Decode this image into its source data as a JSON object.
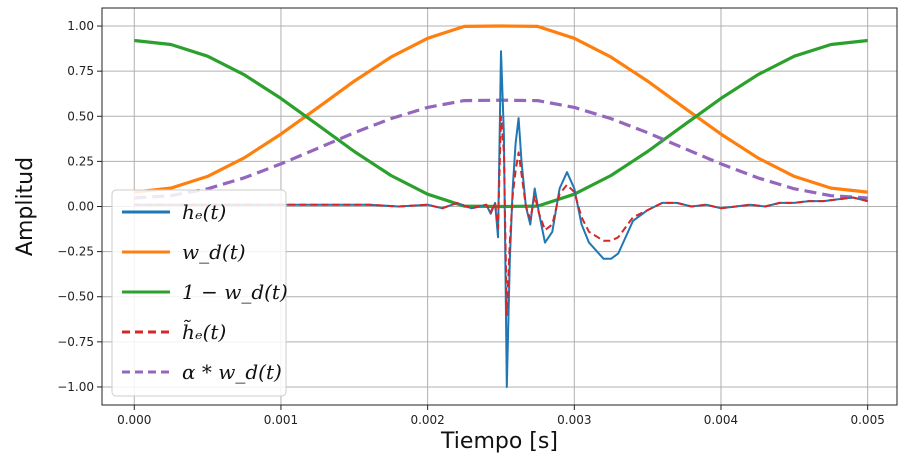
{
  "chart_data": {
    "type": "line",
    "title": "",
    "xlabel": "Tiempo [s]",
    "ylabel": "Amplitud",
    "xlim": [
      -0.00022,
      0.0052
    ],
    "ylim": [
      -1.1,
      1.1
    ],
    "x_ticks": [
      "0.000",
      "0.001",
      "0.002",
      "0.003",
      "0.004",
      "0.005"
    ],
    "x_tick_values": [
      0,
      0.001,
      0.002,
      0.003,
      0.004,
      0.005
    ],
    "y_ticks": [
      "1.00",
      "0.75",
      "0.50",
      "0.25",
      "0.00",
      "−0.25",
      "−0.50",
      "−0.75",
      "−1.00"
    ],
    "y_tick_values": [
      1.0,
      0.75,
      0.5,
      0.25,
      0.0,
      -0.25,
      -0.5,
      -0.75,
      -1.0
    ],
    "grid": true,
    "legend_position": "lower-left",
    "series": [
      {
        "name": "h_e(t)",
        "legend_label": "hₑ(t)",
        "color": "#1f77b4",
        "dash": "solid",
        "x": [
          0.0,
          0.0016,
          0.0018,
          0.002,
          0.0021,
          0.0022,
          0.0023,
          0.0024,
          0.00243,
          0.00246,
          0.00248,
          0.0025,
          0.00252,
          0.00254,
          0.00256,
          0.00258,
          0.0026,
          0.00262,
          0.00264,
          0.00267,
          0.0027,
          0.00273,
          0.00276,
          0.0028,
          0.00285,
          0.0029,
          0.00295,
          0.003,
          0.00305,
          0.0031,
          0.0032,
          0.00325,
          0.0033,
          0.0034,
          0.0035,
          0.0036,
          0.0037,
          0.0038,
          0.0039,
          0.004,
          0.0041,
          0.0042,
          0.0043,
          0.0044,
          0.0045,
          0.0046,
          0.0047,
          0.0048,
          0.0049,
          0.005
        ],
        "y": [
          0.01,
          0.01,
          0.0,
          0.01,
          -0.01,
          0.02,
          -0.01,
          0.01,
          -0.04,
          0.02,
          -0.17,
          0.86,
          0.4,
          -1.0,
          -0.3,
          0.1,
          0.35,
          0.49,
          0.25,
          0.0,
          -0.1,
          0.1,
          -0.04,
          -0.2,
          -0.14,
          0.1,
          0.19,
          0.1,
          -0.1,
          -0.2,
          -0.29,
          -0.29,
          -0.26,
          -0.08,
          -0.02,
          0.02,
          0.02,
          0.0,
          0.01,
          -0.01,
          0.0,
          0.01,
          0.0,
          0.02,
          0.02,
          0.03,
          0.03,
          0.04,
          0.05,
          0.03
        ]
      },
      {
        "name": "w_d(t)",
        "legend_label": "w_d(t)",
        "color": "#ff7f0e",
        "dash": "solid",
        "x": [
          0.0,
          0.00025,
          0.0005,
          0.00075,
          0.001,
          0.00125,
          0.0015,
          0.00175,
          0.002,
          0.00225,
          0.0025,
          0.00275,
          0.003,
          0.00325,
          0.0035,
          0.00375,
          0.004,
          0.00425,
          0.0045,
          0.00475,
          0.005
        ],
        "y": [
          0.08,
          0.102,
          0.167,
          0.27,
          0.401,
          0.547,
          0.695,
          0.828,
          0.932,
          0.998,
          1.0,
          0.998,
          0.932,
          0.828,
          0.695,
          0.547,
          0.401,
          0.27,
          0.167,
          0.102,
          0.08
        ]
      },
      {
        "name": "1 - w_d(t)",
        "legend_label": "1 − w_d(t)",
        "color": "#2ca02c",
        "dash": "solid",
        "x": [
          0.0,
          0.00025,
          0.0005,
          0.00075,
          0.001,
          0.00125,
          0.0015,
          0.00175,
          0.002,
          0.00225,
          0.0025,
          0.00275,
          0.003,
          0.00325,
          0.0035,
          0.00375,
          0.004,
          0.00425,
          0.0045,
          0.00475,
          0.005
        ],
        "y": [
          0.92,
          0.898,
          0.833,
          0.73,
          0.599,
          0.453,
          0.305,
          0.172,
          0.068,
          0.002,
          0.0,
          0.002,
          0.068,
          0.172,
          0.305,
          0.453,
          0.599,
          0.73,
          0.833,
          0.898,
          0.92
        ]
      },
      {
        "name": "h~_e(t)",
        "legend_label": "h̃ₑ(t)",
        "color": "#d62728",
        "dash": "dashed",
        "x": [
          0.0,
          0.0016,
          0.0018,
          0.002,
          0.0021,
          0.0022,
          0.0023,
          0.0024,
          0.00243,
          0.00246,
          0.00248,
          0.0025,
          0.00252,
          0.00254,
          0.00256,
          0.00258,
          0.0026,
          0.00262,
          0.00264,
          0.00267,
          0.0027,
          0.00273,
          0.00276,
          0.0028,
          0.00285,
          0.0029,
          0.00295,
          0.003,
          0.00305,
          0.0031,
          0.0032,
          0.00325,
          0.0033,
          0.0034,
          0.0035,
          0.0036,
          0.0037,
          0.0038,
          0.0039,
          0.004,
          0.0041,
          0.0042,
          0.0043,
          0.0044,
          0.0045,
          0.0046,
          0.0047,
          0.0048,
          0.0049,
          0.005
        ],
        "y": [
          0.01,
          0.01,
          0.0,
          0.01,
          -0.01,
          0.02,
          -0.01,
          0.01,
          -0.03,
          0.02,
          -0.12,
          0.5,
          0.3,
          -0.6,
          -0.2,
          0.06,
          0.2,
          0.3,
          0.18,
          0.0,
          -0.07,
          0.06,
          -0.04,
          -0.13,
          -0.1,
          0.07,
          0.12,
          0.08,
          -0.06,
          -0.14,
          -0.19,
          -0.19,
          -0.17,
          -0.06,
          -0.02,
          0.02,
          0.02,
          0.0,
          0.01,
          -0.01,
          0.0,
          0.01,
          0.0,
          0.02,
          0.02,
          0.03,
          0.03,
          0.04,
          0.05,
          0.03
        ]
      },
      {
        "name": "alpha * w_d(t)",
        "legend_label": "α * w_d(t)",
        "color": "#9467bd",
        "dash": "dashed",
        "x": [
          0.0,
          0.00025,
          0.0005,
          0.00075,
          0.001,
          0.00125,
          0.0015,
          0.00175,
          0.002,
          0.00225,
          0.0025,
          0.00275,
          0.003,
          0.00325,
          0.0035,
          0.00375,
          0.004,
          0.00425,
          0.0045,
          0.00475,
          0.005
        ],
        "y": [
          0.047,
          0.06,
          0.098,
          0.159,
          0.236,
          0.322,
          0.409,
          0.487,
          0.549,
          0.587,
          0.589,
          0.587,
          0.549,
          0.487,
          0.409,
          0.322,
          0.236,
          0.159,
          0.098,
          0.06,
          0.047
        ]
      }
    ]
  }
}
